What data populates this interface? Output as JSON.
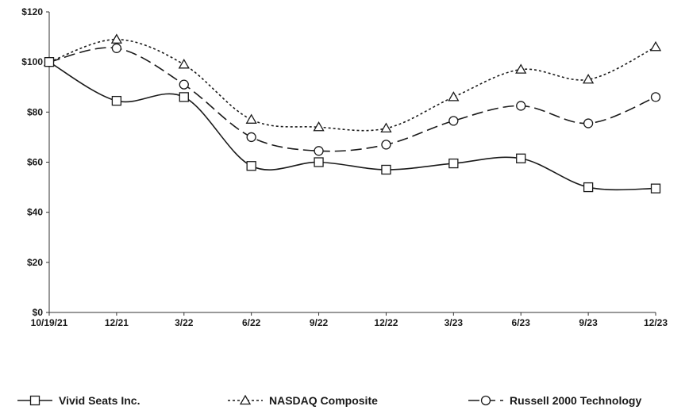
{
  "chart_data": {
    "type": "line",
    "categories": [
      "10/19/21",
      "12/21",
      "3/22",
      "6/22",
      "9/22",
      "12/22",
      "3/23",
      "6/23",
      "9/23",
      "12/23"
    ],
    "ylim": [
      0,
      120
    ],
    "y_ticks": [
      "$0",
      "$20",
      "$40",
      "$60",
      "$80",
      "$100",
      "$120"
    ],
    "grid": false,
    "legend_position": "bottom",
    "series": [
      {
        "name": "Vivid Seats Inc.",
        "marker": "square",
        "line_style": "solid",
        "color": "#1a1a1a",
        "values": [
          100,
          84.5,
          86,
          58.5,
          60,
          57,
          59.5,
          61.5,
          50,
          49.5
        ]
      },
      {
        "name": "NASDAQ Composite",
        "marker": "triangle",
        "line_style": "dotted",
        "color": "#1a1a1a",
        "values": [
          100,
          109,
          99,
          77,
          74,
          73.5,
          86,
          97,
          93,
          106
        ]
      },
      {
        "name": "Russell 2000 Technology",
        "marker": "circle",
        "line_style": "long-dash",
        "color": "#1a1a1a",
        "values": [
          100,
          105.5,
          91,
          70,
          64.5,
          67,
          76.5,
          82.5,
          75.5,
          86
        ]
      }
    ]
  }
}
